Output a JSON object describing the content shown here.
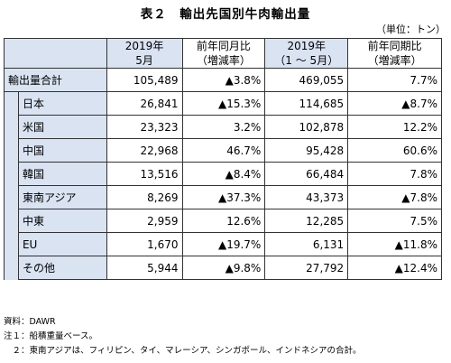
{
  "title": "表２　輸出先国別牛肉輸出量",
  "unit": "（単位：トン）",
  "headers": {
    "col1_line1": "2019年",
    "col1_line2": "5月",
    "col2_line1": "前年同月比",
    "col2_line2": "（増減率）",
    "col3_line1": "2019年",
    "col3_line2": "（1 ～ 5月）",
    "col4_line1": "前年同期比",
    "col4_line2": "（増減率）"
  },
  "total": {
    "label": "輸出量合計",
    "may": "105,489",
    "yoy_month": "▲3.8%",
    "ytd": "469,055",
    "yoy_period": "7.7%"
  },
  "rows": [
    {
      "label": "日本",
      "may": "26,841",
      "yoy_month": "▲15.3%",
      "ytd": "114,685",
      "yoy_period": "▲8.7%"
    },
    {
      "label": "米国",
      "may": "23,323",
      "yoy_month": "3.2%",
      "ytd": "102,878",
      "yoy_period": "12.2%"
    },
    {
      "label": "中国",
      "may": "22,968",
      "yoy_month": "46.7%",
      "ytd": "95,428",
      "yoy_period": "60.6%"
    },
    {
      "label": "韓国",
      "may": "13,516",
      "yoy_month": "▲8.4%",
      "ytd": "66,484",
      "yoy_period": "7.8%"
    },
    {
      "label": "東南アジア",
      "may": "8,269",
      "yoy_month": "▲37.3%",
      "ytd": "43,373",
      "yoy_period": "▲7.8%"
    },
    {
      "label": "中東",
      "may": "2,959",
      "yoy_month": "12.6%",
      "ytd": "12,285",
      "yoy_period": "7.5%"
    },
    {
      "label": "EU",
      "may": "1,670",
      "yoy_month": "▲19.7%",
      "ytd": "6,131",
      "yoy_period": "▲11.8%"
    },
    {
      "label": "その他",
      "may": "5,944",
      "yoy_month": "▲9.8%",
      "ytd": "27,792",
      "yoy_period": "▲12.4%"
    }
  ],
  "notes": {
    "source": "資料：DAWR",
    "note1": "注１：船積重量ベース。",
    "note2": "　２：東南アジアは、フィリピン、タイ、マレーシア、シンガポール、インドネシアの合計。"
  },
  "colors": {
    "header_bg": "#d9e3f2",
    "border": "#333333"
  }
}
